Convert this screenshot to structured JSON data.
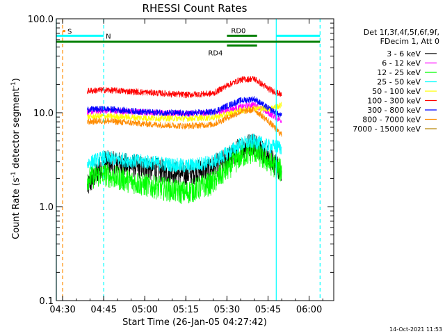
{
  "chart_data": {
    "type": "line",
    "title": "RHESSI Count Rates",
    "xlabel": "Start Time (26-Jan-05 04:27:42)",
    "ylabel_main": "Count Rate (s",
    "ylabel_sup1": "-1",
    "ylabel_mid": " detector segment",
    "ylabel_sup2": "-1",
    "ylabel_end": ")",
    "y_scale": "log",
    "ylim": [
      0.1,
      100
    ],
    "x_ticks": [
      "04:30",
      "04:45",
      "05:00",
      "05:15",
      "05:30",
      "05:45",
      "06:00"
    ],
    "y_ticks": [
      "0.1",
      "1.0",
      "10.0",
      "100.0"
    ],
    "legend_header": [
      "Det 1f,3f,4f,5f,6f,9f,",
      "FDecim 1, Att 0"
    ],
    "series": [
      {
        "name": "3 - 6 keV",
        "color": "#000000",
        "x": [
          "04:39",
          "04:45",
          "05:00",
          "05:15",
          "05:25",
          "05:30",
          "05:35",
          "05:40",
          "05:45",
          "05:50"
        ],
        "values": [
          1.6,
          3.0,
          2.6,
          2.2,
          2.6,
          3.2,
          4.2,
          4.8,
          3.4,
          2.4
        ]
      },
      {
        "name": "6 - 12 keV",
        "color": "#ff00ff",
        "x": [
          "04:39",
          "04:45",
          "05:00",
          "05:15",
          "05:25",
          "05:30",
          "05:35",
          "05:40",
          "05:45",
          "05:50"
        ],
        "values": [
          10.2,
          10.6,
          10.1,
          9.8,
          10.0,
          10.6,
          11.5,
          12.2,
          10.0,
          8.2
        ]
      },
      {
        "name": "12 - 25 keV",
        "color": "#00ff00",
        "x": [
          "04:39",
          "04:45",
          "05:00",
          "05:15",
          "05:25",
          "05:30",
          "05:35",
          "05:40",
          "05:45",
          "05:50"
        ],
        "values": [
          2.0,
          2.2,
          1.7,
          1.4,
          1.8,
          2.5,
          3.4,
          3.9,
          3.0,
          2.4
        ]
      },
      {
        "name": "25 - 50 keV",
        "color": "#00ffff",
        "x": [
          "04:39",
          "04:45",
          "05:00",
          "05:15",
          "05:25",
          "05:30",
          "05:35",
          "05:40",
          "05:45",
          "05:50"
        ],
        "values": [
          2.9,
          3.3,
          3.0,
          2.7,
          3.0,
          3.7,
          4.6,
          5.0,
          4.4,
          4.3
        ]
      },
      {
        "name": "50 - 100 keV",
        "color": "#ffff00",
        "x": [
          "04:39",
          "04:45",
          "05:00",
          "05:15",
          "05:25",
          "05:30",
          "05:35",
          "05:40",
          "05:45",
          "05:50"
        ],
        "values": [
          9.0,
          9.2,
          8.8,
          8.7,
          8.9,
          9.6,
          10.5,
          11.2,
          11.0,
          12.0
        ]
      },
      {
        "name": "100 - 300 keV",
        "color": "#ff0000",
        "x": [
          "04:39",
          "04:45",
          "05:00",
          "05:15",
          "05:25",
          "05:30",
          "05:35",
          "05:40",
          "05:45",
          "05:50"
        ],
        "values": [
          17.0,
          17.5,
          16.5,
          15.5,
          16.0,
          19.5,
          22.5,
          23.0,
          18.0,
          15.5
        ]
      },
      {
        "name": "300 - 800 keV",
        "color": "#0000ff",
        "x": [
          "04:39",
          "04:45",
          "05:00",
          "05:15",
          "05:25",
          "05:30",
          "05:35",
          "05:40",
          "05:45",
          "05:50"
        ],
        "values": [
          10.8,
          11.0,
          10.2,
          9.8,
          10.2,
          11.8,
          13.5,
          14.0,
          11.2,
          9.2
        ]
      },
      {
        "name": "800 - 7000 keV",
        "color": "#ff8c00",
        "x": [
          "04:39",
          "04:45",
          "05:00",
          "05:15",
          "05:25",
          "05:30",
          "05:35",
          "05:40",
          "05:45",
          "05:50"
        ],
        "values": [
          8.0,
          8.2,
          7.6,
          7.2,
          7.5,
          8.8,
          10.2,
          10.8,
          8.2,
          5.8
        ]
      },
      {
        "name": "7000 - 15000 keV",
        "color": "#b8860b",
        "x": [],
        "values": []
      }
    ],
    "bars": [
      {
        "label": "S",
        "color": "#ff8c00",
        "x0": "04:30",
        "x1": "04:31",
        "y": 74
      },
      {
        "label": "N",
        "color": "#00ffff",
        "x0": "04:27:42",
        "x1": "04:45",
        "y": 66
      },
      {
        "label": "",
        "color": "#00ffff",
        "x0": "05:48",
        "x1": "06:04",
        "y": 66
      },
      {
        "label": "",
        "color": "#008000",
        "x0": "04:27:42",
        "x1": "06:04",
        "y": 57
      },
      {
        "label": "RD0",
        "color": "#008000",
        "x0": "05:30",
        "x1": "05:41",
        "y": 66
      },
      {
        "label": "RD4",
        "color": "#008000",
        "x0": "05:30",
        "x1": "05:41",
        "y": 52
      }
    ],
    "vlines": [
      {
        "x": "04:27:42",
        "color": "#00ffff",
        "style": "solid"
      },
      {
        "x": "04:30",
        "color": "#ff8c00",
        "style": "dashed"
      },
      {
        "x": "04:45",
        "color": "#00ffff",
        "style": "dashed"
      },
      {
        "x": "05:48",
        "color": "#00ffff",
        "style": "solid"
      },
      {
        "x": "06:04",
        "color": "#00ffff",
        "style": "dashed"
      }
    ],
    "footer_timestamp": "14-Oct-2021 11:53"
  }
}
